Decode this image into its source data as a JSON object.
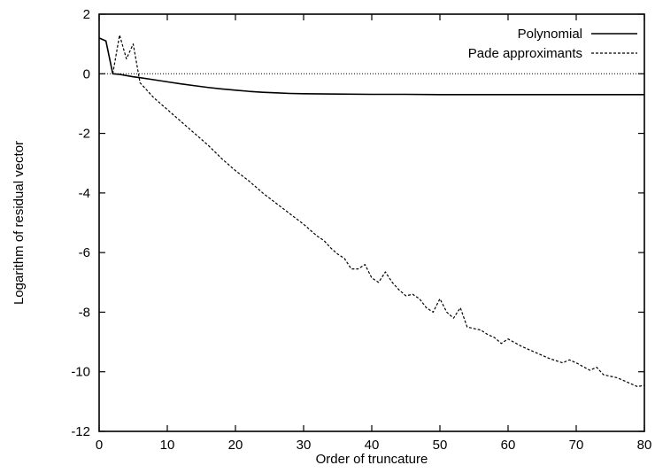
{
  "chart_data": {
    "type": "line",
    "title": "",
    "xlabel": "Order of truncature",
    "ylabel": "Logarithm of residual vector",
    "xlim": [
      0,
      80
    ],
    "ylim": [
      -12,
      2
    ],
    "xticks": [
      0,
      10,
      20,
      30,
      40,
      50,
      60,
      70,
      80
    ],
    "yticks": [
      2,
      0,
      -2,
      -4,
      -6,
      -8,
      -10,
      -12
    ],
    "grid": false,
    "legend_position": "top-right",
    "reference_line": {
      "y": 0,
      "style": "dotted"
    },
    "series": [
      {
        "name": "Polynomial",
        "style": "solid",
        "x": [
          0,
          1,
          2,
          3,
          4,
          5,
          6,
          8,
          10,
          12,
          14,
          16,
          18,
          20,
          22,
          24,
          26,
          28,
          30,
          35,
          40,
          45,
          50,
          55,
          60,
          65,
          70,
          75,
          80
        ],
        "y": [
          1.2,
          1.1,
          0.0,
          -0.02,
          -0.06,
          -0.1,
          -0.13,
          -0.2,
          -0.27,
          -0.34,
          -0.4,
          -0.46,
          -0.51,
          -0.55,
          -0.59,
          -0.62,
          -0.64,
          -0.66,
          -0.67,
          -0.68,
          -0.69,
          -0.69,
          -0.7,
          -0.7,
          -0.7,
          -0.7,
          -0.7,
          -0.7,
          -0.7
        ]
      },
      {
        "name": "Pade approximants",
        "style": "dashed",
        "x": [
          2,
          3,
          4,
          5,
          6,
          8,
          10,
          12,
          14,
          16,
          18,
          20,
          22,
          24,
          26,
          28,
          30,
          32,
          33,
          34,
          35,
          36,
          37,
          38,
          39,
          40,
          41,
          42,
          43,
          44,
          45,
          46,
          47,
          48,
          49,
          50,
          51,
          52,
          53,
          54,
          55,
          56,
          57,
          58,
          59,
          60,
          62,
          64,
          66,
          68,
          69,
          70,
          72,
          73,
          74,
          76,
          78,
          79,
          80
        ],
        "y": [
          0.0,
          1.3,
          0.5,
          1.0,
          -0.3,
          -0.8,
          -1.2,
          -1.6,
          -2.0,
          -2.4,
          -2.85,
          -3.25,
          -3.6,
          -4.0,
          -4.35,
          -4.7,
          -5.05,
          -5.45,
          -5.6,
          -5.85,
          -6.05,
          -6.2,
          -6.55,
          -6.55,
          -6.4,
          -6.85,
          -7.0,
          -6.65,
          -7.0,
          -7.25,
          -7.45,
          -7.4,
          -7.55,
          -7.85,
          -8.0,
          -7.55,
          -8.0,
          -8.2,
          -7.85,
          -8.5,
          -8.55,
          -8.6,
          -8.75,
          -8.85,
          -9.05,
          -8.9,
          -9.15,
          -9.35,
          -9.55,
          -9.7,
          -9.6,
          -9.7,
          -9.95,
          -9.85,
          -10.1,
          -10.2,
          -10.4,
          -10.5,
          -10.45
        ]
      }
    ]
  }
}
